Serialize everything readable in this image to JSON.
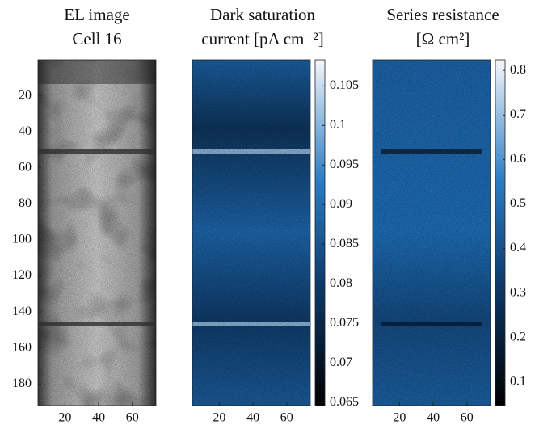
{
  "chart_data": [
    {
      "type": "image",
      "title": [
        "EL image",
        "Cell 16"
      ],
      "xlim": [
        4,
        74
      ],
      "xticks": [
        20,
        40,
        60
      ],
      "ylim": [
        0,
        192
      ],
      "yticks": [
        20,
        40,
        60,
        80,
        100,
        120,
        140,
        160,
        180
      ]
    },
    {
      "type": "image",
      "title": [
        "Dark saturation",
        "current [pA cm⁻²]"
      ],
      "xlim": [
        4,
        74
      ],
      "xticks": [
        20,
        40,
        60
      ],
      "colorbar": {
        "lim": [
          0.0646,
          0.1083
        ],
        "ticks": [
          0.065,
          0.07,
          0.075,
          0.08,
          0.085,
          0.09,
          0.095,
          0.1,
          0.105
        ]
      }
    },
    {
      "type": "image",
      "title": [
        "Series resistance",
        "[Ω cm²]"
      ],
      "xlim": [
        4,
        74
      ],
      "xticks": [
        20,
        40,
        60
      ],
      "colorbar": {
        "lim": [
          0.047,
          0.824
        ],
        "ticks": [
          0.1,
          0.2,
          0.3,
          0.4,
          0.5,
          0.6,
          0.7,
          0.8
        ]
      }
    }
  ]
}
